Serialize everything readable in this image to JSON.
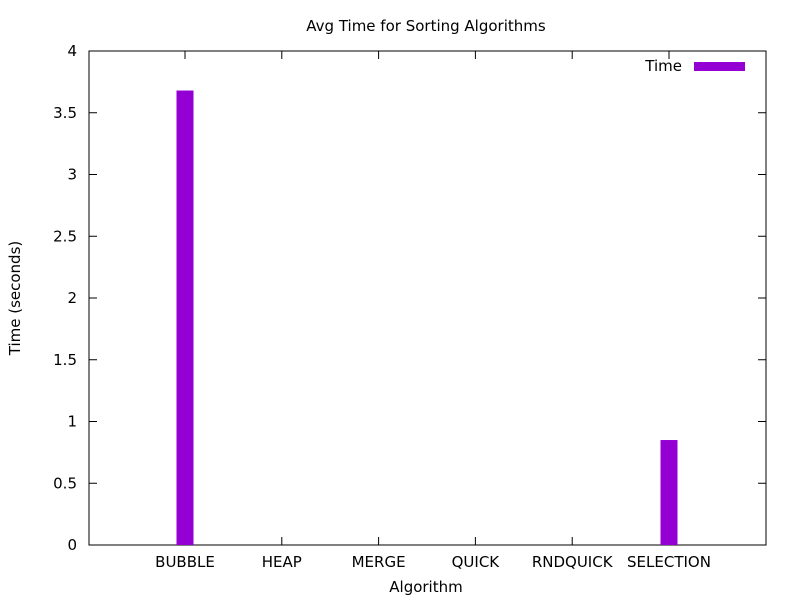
{
  "chart_data": {
    "type": "bar",
    "title": "Avg Time for Sorting Algorithms",
    "xlabel": "Algorithm",
    "ylabel": "Time (seconds)",
    "categories": [
      "BUBBLE",
      "HEAP",
      "MERGE",
      "QUICK",
      "RNDQUICK",
      "SELECTION"
    ],
    "series": [
      {
        "name": "Time",
        "values": [
          3.68,
          0.0,
          0.0,
          0.0,
          0.0,
          0.85
        ],
        "color": "#9400d3"
      }
    ],
    "ylim": [
      0,
      4
    ],
    "yticks": [
      "0",
      "0.5",
      "1",
      "1.5",
      "2",
      "2.5",
      "3",
      "3.5",
      "4"
    ],
    "grid": false,
    "legend_position": "top-right"
  }
}
